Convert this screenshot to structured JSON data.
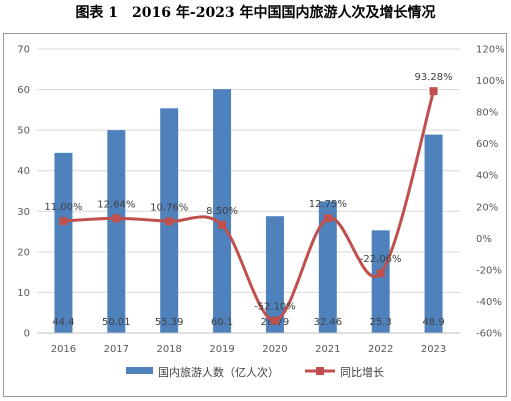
{
  "title": "图表 1　2016 年-2023 年中国国内旅游人次及增长情况",
  "colors": {
    "bar": "#4f81bd",
    "line": "#c0504d",
    "grid": "#d9d9d9",
    "axis_text": "#595959"
  },
  "chart_data": {
    "type": "bar",
    "categories": [
      "2016",
      "2017",
      "2018",
      "2019",
      "2020",
      "2021",
      "2022",
      "2023"
    ],
    "series": [
      {
        "name": "国内旅游人数（亿人次）",
        "type": "bar",
        "axis": "left",
        "values": [
          44.4,
          50.01,
          55.39,
          60.1,
          28.79,
          32.46,
          25.3,
          48.9
        ],
        "labels": [
          "44.4",
          "50.01",
          "55.39",
          "60.1",
          "28.79",
          "32.46",
          "25.3",
          "48.9"
        ]
      },
      {
        "name": "同比增长",
        "type": "line",
        "axis": "right",
        "smooth": true,
        "values": [
          11.0,
          12.64,
          10.76,
          8.5,
          -52.1,
          12.75,
          -22.06,
          93.28
        ],
        "labels": [
          "11.00%",
          "12.64%",
          "10.76%",
          "8.50%",
          "-52.10%",
          "12.75%",
          "-22.06%",
          "93.28%"
        ]
      }
    ],
    "ylim_left": [
      0,
      70
    ],
    "yticks_left": [
      "0",
      "10",
      "20",
      "30",
      "40",
      "50",
      "60",
      "70"
    ],
    "ylim_right": [
      -60,
      120
    ],
    "yticks_right": [
      "-60%",
      "-40%",
      "-20%",
      "0%",
      "20%",
      "40%",
      "60%",
      "80%",
      "100%",
      "120%"
    ],
    "grid": true,
    "legend": "bottom"
  }
}
